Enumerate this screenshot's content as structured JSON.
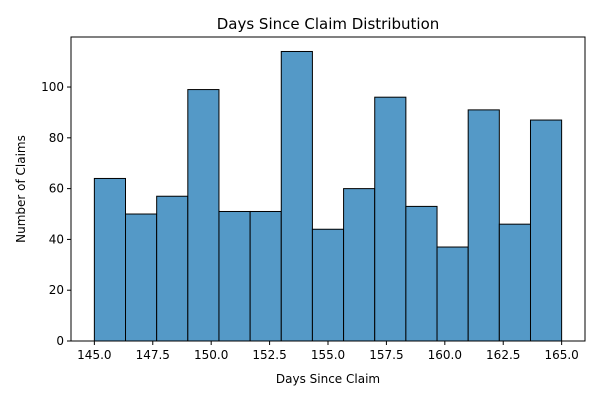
{
  "chart_data": {
    "type": "bar",
    "title": "Days Since Claim Distribution",
    "xlabel": "Days Since Claim",
    "ylabel": "Number of Claims",
    "bin_edges": [
      145.0,
      146.333,
      147.667,
      149.0,
      150.333,
      151.667,
      153.0,
      154.333,
      155.667,
      157.0,
      158.333,
      159.667,
      161.0,
      162.333,
      163.667,
      165.0
    ],
    "values": [
      64,
      50,
      57,
      99,
      51,
      51,
      114,
      44,
      60,
      96,
      53,
      37,
      91,
      46,
      87
    ],
    "xlim": [
      144.0,
      166.0
    ],
    "ylim": [
      0,
      119.7
    ],
    "x_ticks": [
      145.0,
      147.5,
      150.0,
      152.5,
      155.0,
      157.5,
      160.0,
      162.5,
      165.0
    ],
    "x_tick_labels": [
      "145.0",
      "147.5",
      "150.0",
      "152.5",
      "155.0",
      "157.5",
      "160.0",
      "162.5",
      "165.0"
    ],
    "y_ticks": [
      0,
      20,
      40,
      60,
      80,
      100
    ],
    "y_tick_labels": [
      "0",
      "20",
      "40",
      "60",
      "80",
      "100"
    ],
    "bar_color": "#5499c7",
    "edge_color": "#000000",
    "grid": false
  }
}
